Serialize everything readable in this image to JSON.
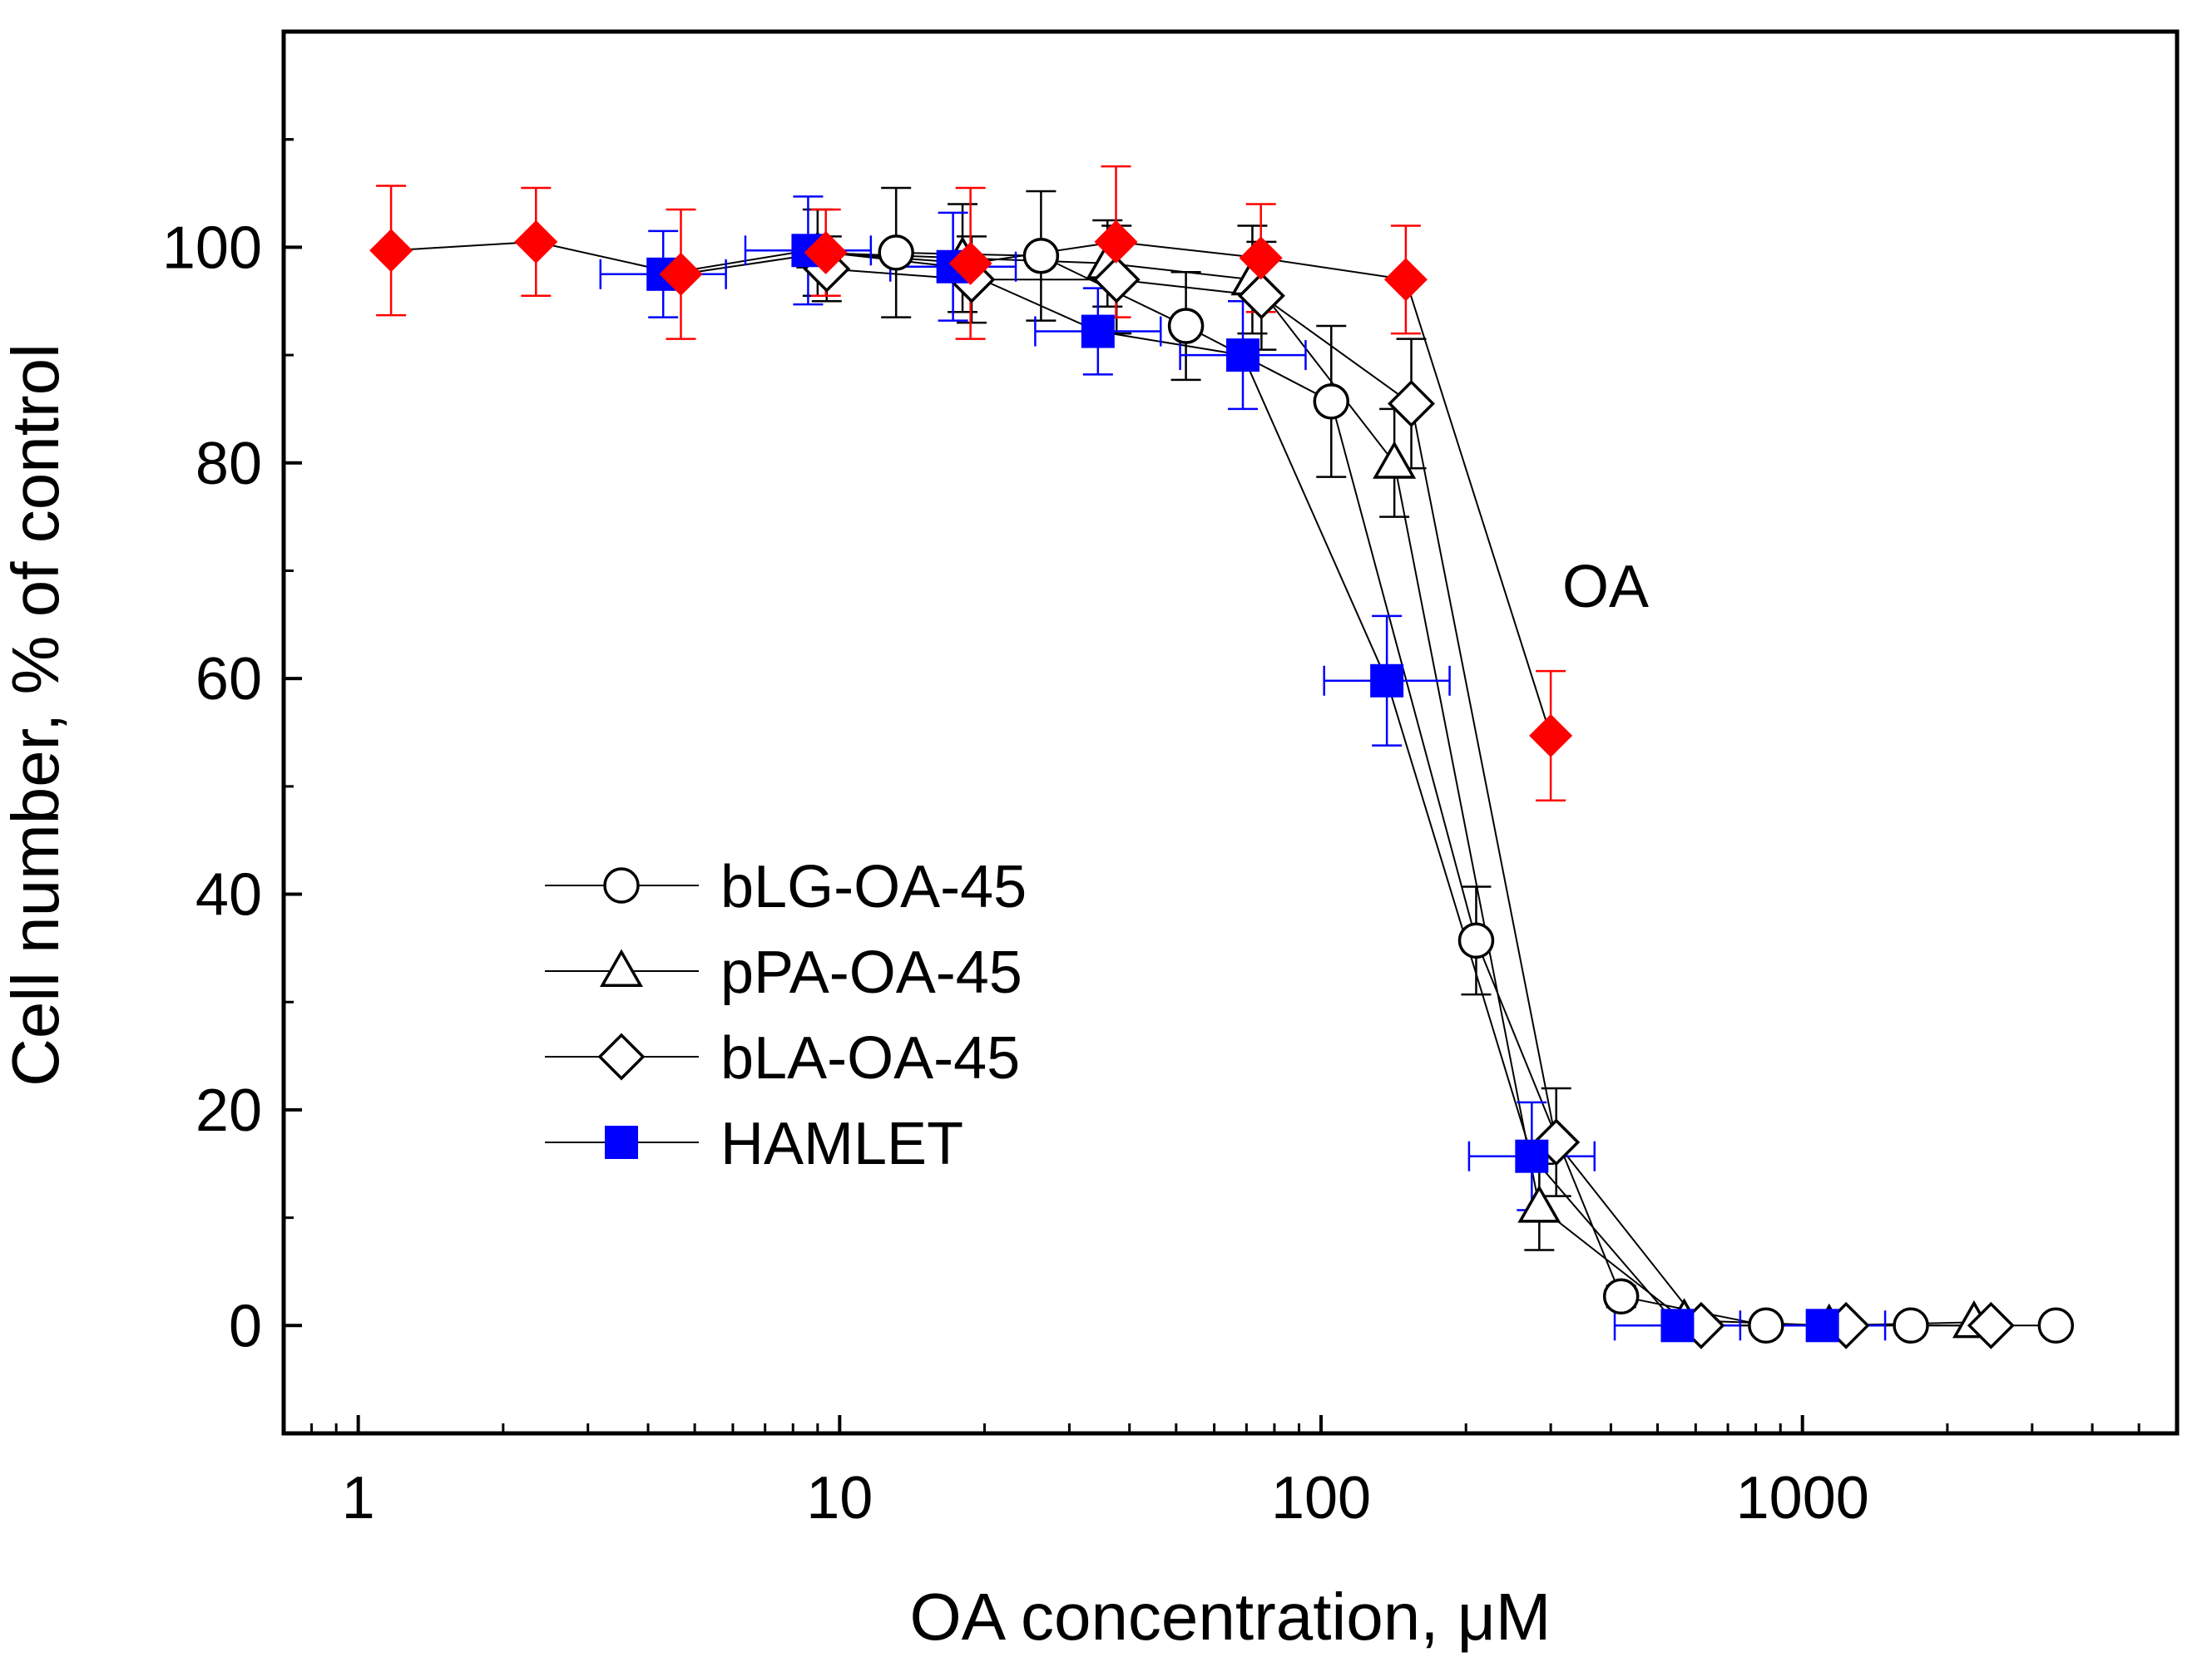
{
  "chart_data": {
    "type": "scatter",
    "xscale": "log",
    "xlabel": "OA concentration, μM",
    "ylabel": "Cell number, % of control",
    "xlim": [
      0.7,
      6000
    ],
    "ylim": [
      -10,
      120
    ],
    "xticks": [
      1,
      10,
      100,
      1000
    ],
    "xtick_labels": [
      "1",
      "10",
      "100",
      "1000"
    ],
    "yticks": [
      0,
      20,
      40,
      60,
      80,
      100
    ],
    "ytick_labels": [
      "0",
      "20",
      "40",
      "60",
      "80",
      "100"
    ],
    "grid": false,
    "legend_position": "bottom-left",
    "annotation": "OA",
    "series": [
      {
        "name": "bLG-OA-45",
        "marker": "circle-open",
        "color": "#000000",
        "errcolor": "#000000",
        "x": [
          13.1,
          26.2,
          52.4,
          105,
          210,
          420,
          840,
          1680,
          3360
        ],
        "y": [
          99.5,
          99.2,
          92.7,
          85.7,
          35.7,
          2.7,
          0,
          0,
          0
        ],
        "yerr": [
          6.0,
          6.0,
          5.0,
          7.0,
          5.0,
          1.0,
          0,
          0,
          0
        ]
      },
      {
        "name": "pPA-OA-45",
        "marker": "triangle-open",
        "color": "#000000",
        "errcolor": "#000000",
        "x": [
          9.0,
          18.0,
          36.0,
          72.0,
          142,
          284,
          568,
          1136,
          2272
        ],
        "y": [
          99.5,
          99.0,
          98.5,
          97.0,
          80.0,
          11.0,
          0.5,
          0,
          0.3
        ],
        "yerr": [
          4.0,
          5.0,
          4.0,
          5.0,
          5.0,
          4.0,
          0.5,
          0,
          0
        ]
      },
      {
        "name": "bLA-OA-45",
        "marker": "diamond-open",
        "color": "#000000",
        "errcolor": "#000000",
        "x": [
          9.4,
          18.8,
          37.6,
          75.2,
          154,
          308,
          616,
          1232,
          2464
        ],
        "y": [
          98.0,
          97.0,
          97.0,
          95.5,
          85.5,
          17.0,
          0,
          0,
          0
        ],
        "yerr": [
          3.0,
          4.0,
          5.0,
          5.0,
          6.0,
          5.0,
          0,
          0,
          0
        ]
      },
      {
        "name": "HAMLET",
        "marker": "square-filled",
        "color": "#0000ff",
        "errcolor": "#0000ff",
        "x": [
          4.3,
          8.6,
          17.2,
          34.4,
          68.8,
          137,
          274,
          550,
          1100
        ],
        "y": [
          97.5,
          99.7,
          98.2,
          92.2,
          90.0,
          59.8,
          15.7,
          0,
          0
        ],
        "yerr": [
          4.0,
          5.0,
          5.0,
          4.0,
          5.0,
          6.0,
          5.0,
          0,
          0
        ],
        "xerr_factor": [
          1.35,
          1.35,
          1.35,
          1.35,
          1.35,
          1.35,
          1.35,
          1.35,
          1.35
        ]
      },
      {
        "name": "OA",
        "marker": "diamond-filled",
        "color": "#ff0000",
        "errcolor": "#ff0000",
        "legend": false,
        "x": [
          1.17,
          2.34,
          4.68,
          9.36,
          18.7,
          37.5,
          75,
          150,
          300
        ],
        "y": [
          99.7,
          100.5,
          97.5,
          99.5,
          98.5,
          100.5,
          99.0,
          97.0,
          54.7
        ],
        "yerr": [
          6.0,
          5.0,
          6.0,
          4.0,
          7.0,
          7.0,
          5.0,
          5.0,
          6.0
        ]
      }
    ]
  }
}
